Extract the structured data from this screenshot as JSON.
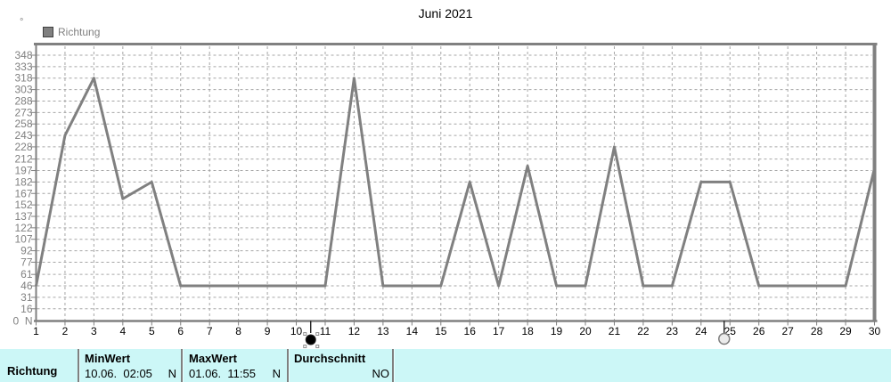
{
  "title": "Juni 2021",
  "y_axis_unit": "°",
  "legend": {
    "label": "Richtung",
    "swatch_color": "#808080"
  },
  "colors": {
    "background": "#ffffff",
    "panel_background": "#ccf7f7",
    "axis": "#808080",
    "grid": "#a6a6a6",
    "series": "#808080",
    "y_tick_label": "#808080",
    "x_tick_label": "#000000"
  },
  "chart_data": {
    "type": "line",
    "title": "Juni 2021",
    "xlabel": "",
    "ylabel": "°",
    "grid": true,
    "legend_position": "top-left",
    "x": [
      1,
      2,
      3,
      4,
      5,
      6,
      7,
      8,
      9,
      10,
      11,
      12,
      13,
      14,
      15,
      16,
      17,
      18,
      19,
      20,
      21,
      22,
      23,
      24,
      25,
      26,
      27,
      28,
      29,
      30
    ],
    "y_tick_values": [
      16,
      31,
      46,
      61,
      77,
      92,
      107,
      122,
      137,
      152,
      167,
      182,
      197,
      212,
      228,
      243,
      258,
      273,
      288,
      303,
      318,
      333,
      348
    ],
    "y_bottom_label": "0  N",
    "ylim": [
      0,
      360
    ],
    "series": [
      {
        "name": "Richtung",
        "color": "#808080",
        "values": [
          46,
          243,
          318,
          160,
          182,
          46,
          46,
          46,
          46,
          46,
          46,
          318,
          46,
          46,
          46,
          182,
          46,
          203,
          46,
          46,
          228,
          46,
          46,
          182,
          182,
          46,
          46,
          46,
          46,
          200
        ]
      }
    ],
    "markers": [
      {
        "type": "new-moon",
        "day": 10.5
      },
      {
        "type": "full-moon",
        "day": 24.8
      }
    ]
  },
  "summary_panel": {
    "row_label": "Richtung",
    "columns": [
      {
        "header": "MinWert",
        "value": "10.06.  02:05",
        "unit": "N"
      },
      {
        "header": "MaxWert",
        "value": "01.06.  11:55",
        "unit": "N"
      },
      {
        "header": "Durchschnitt",
        "value": "",
        "unit": "NO"
      }
    ]
  }
}
